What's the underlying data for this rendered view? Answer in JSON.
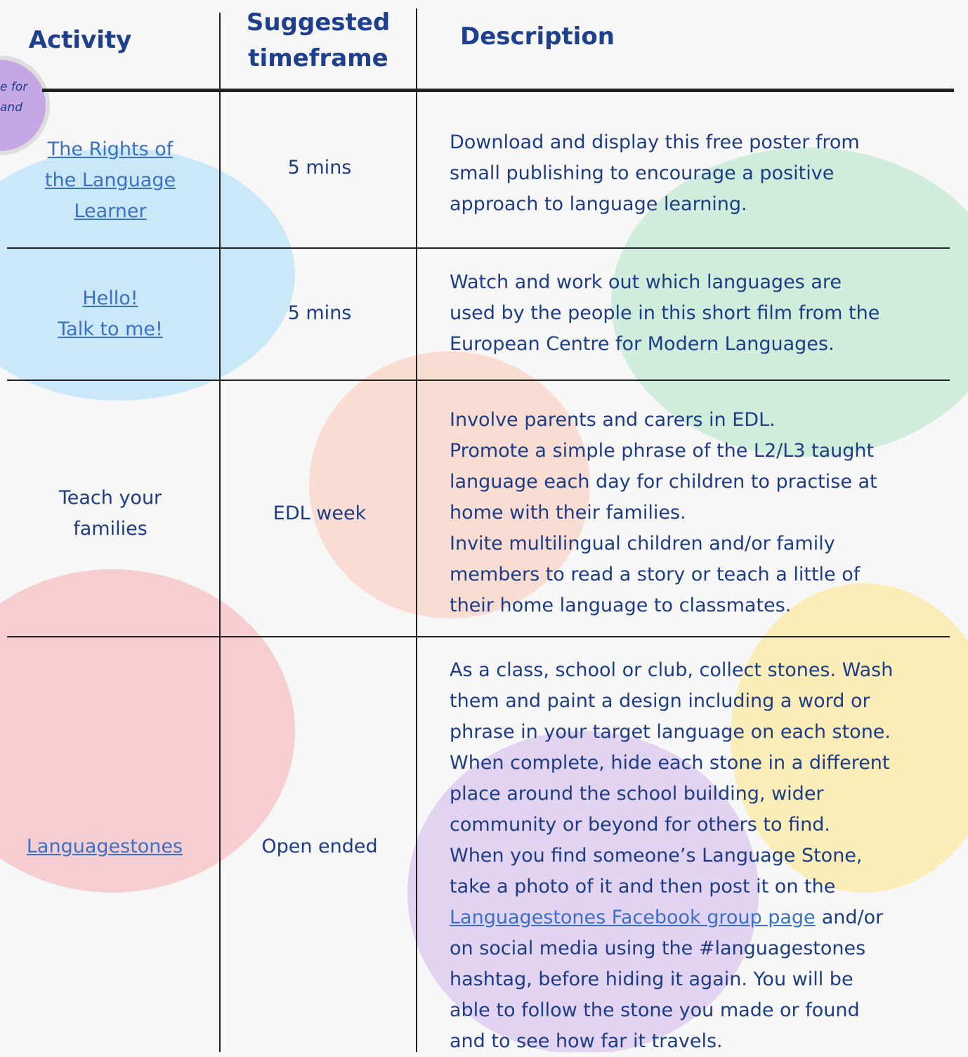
{
  "header": {
    "activity": "Activity",
    "timeframe": [
      "Suggested",
      "timeframe"
    ],
    "description": "Description"
  },
  "sticker": [
    "e for",
    "and"
  ],
  "rows": [
    {
      "activity": [
        "The Rights of",
        "the Language",
        "Learner"
      ],
      "activity_is_link": true,
      "timeframe": "5 mins",
      "description": [
        "Download and display this free poster from",
        "small publishing to encourage a positive",
        "approach to language learning."
      ]
    },
    {
      "activity": [
        "Hello!",
        "Talk to me!"
      ],
      "activity_is_link": true,
      "timeframe": "5 mins",
      "description": [
        "Watch and work out which languages are",
        "used by the people in this short film from the",
        "European Centre for Modern Languages."
      ]
    },
    {
      "activity": [
        "Teach your",
        "families"
      ],
      "activity_is_link": false,
      "timeframe": "EDL week",
      "description": [
        "Involve parents and carers in EDL.",
        "Promote a simple phrase of the L2/L3 taught",
        "language each day for children to practise at",
        "home with their families.",
        "Invite multilingual children and/or family",
        "members to read a story or teach a little of",
        "their home language to classmates."
      ]
    },
    {
      "activity": [
        "Languagestones"
      ],
      "activity_is_link": true,
      "timeframe": "Open ended",
      "description": [
        "As a class, school or club, collect stones. Wash",
        "them and paint a design including a word or",
        "phrase in your target language on each stone.",
        "When complete, hide each stone in a different",
        "place around the school building, wider",
        "community or beyond for others to find.",
        "When you find someone’s Language Stone,",
        "take a photo of it and then post it on the",
        {
          "link": "Languagestones Facebook group page",
          "text": "and/or"
        },
        "on social media using the #languagestones",
        "hashtag, before hiding it again. You will be",
        "able to follow the stone you made or found",
        "and to see how far it travels."
      ]
    }
  ]
}
